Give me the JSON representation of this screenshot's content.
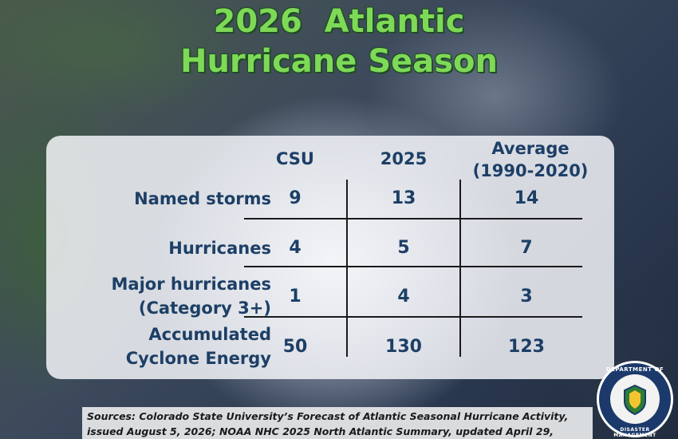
{
  "title": {
    "line1": "2026  Atlantic",
    "line2": "Hurricane Season"
  },
  "table": {
    "columns": [
      "CSU",
      "2025",
      "Average\n(1990-2020)"
    ],
    "columns_split": {
      "c0": "CSU",
      "c1": "2025",
      "c2a": "Average",
      "c2b": "(1990-2020)"
    },
    "rows": [
      {
        "label_a": "Named storms",
        "label_b": "",
        "values": [
          "9",
          "13",
          "14"
        ]
      },
      {
        "label_a": "Hurricanes",
        "label_b": "",
        "values": [
          "4",
          "5",
          "7"
        ]
      },
      {
        "label_a": "Major hurricanes",
        "label_b": "(Category 3+)",
        "values": [
          "1",
          "4",
          "3"
        ]
      },
      {
        "label_a": "Accumulated",
        "label_b": "Cyclone Energy",
        "values": [
          "50",
          "130",
          "123"
        ]
      }
    ]
  },
  "footer": {
    "line1": "Sources: Colorado State University’s Forecast of Atlantic Seasonal Hurricane Activity,",
    "line2": "issued August 5, 2026; NOAA NHC 2025 North Atlantic Summary, updated April 29,"
  },
  "seal": {
    "top_text": "DEPARTMENT OF",
    "bottom_text": "DISASTER MANAGEMENT"
  },
  "colors": {
    "title_green": "#7ed957",
    "table_text": "#1d3f66"
  }
}
